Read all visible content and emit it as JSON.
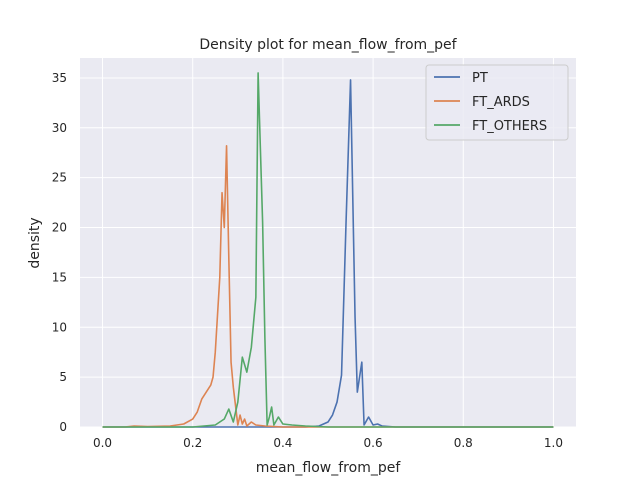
{
  "chart_data": {
    "type": "line",
    "title": "Density plot for mean_flow_from_pef",
    "xlabel": "mean_flow_from_pef",
    "ylabel": "density",
    "xlim": [
      -0.05,
      1.05
    ],
    "ylim": [
      0,
      37
    ],
    "xticks": [
      "0.0",
      "0.2",
      "0.4",
      "0.6",
      "0.8",
      "1.0"
    ],
    "yticks": [
      "0",
      "5",
      "10",
      "15",
      "20",
      "25",
      "30",
      "35"
    ],
    "grid": true,
    "legend_position": "top-right",
    "series": [
      {
        "name": "PT",
        "color": "#4c72b0",
        "x": [
          0.0,
          0.1,
          0.2,
          0.3,
          0.4,
          0.45,
          0.48,
          0.5,
          0.51,
          0.52,
          0.53,
          0.54,
          0.55,
          0.56,
          0.565,
          0.575,
          0.58,
          0.59,
          0.6,
          0.61,
          0.62,
          0.65,
          0.7,
          0.8,
          0.9,
          1.0
        ],
        "y": [
          0,
          0,
          0,
          0,
          0,
          0,
          0.1,
          0.5,
          1.2,
          2.5,
          5.2,
          20.5,
          34.8,
          11.0,
          3.5,
          6.5,
          0.2,
          1.0,
          0.2,
          0.3,
          0.1,
          0,
          0,
          0,
          0,
          0
        ]
      },
      {
        "name": "FT_ARDS",
        "color": "#dd8452",
        "x": [
          0.0,
          0.05,
          0.07,
          0.1,
          0.15,
          0.18,
          0.2,
          0.21,
          0.22,
          0.23,
          0.24,
          0.245,
          0.25,
          0.26,
          0.265,
          0.27,
          0.275,
          0.28,
          0.285,
          0.29,
          0.3,
          0.305,
          0.31,
          0.315,
          0.32,
          0.33,
          0.34,
          0.36,
          0.4,
          0.5,
          0.7,
          1.0
        ],
        "y": [
          0,
          0,
          0.1,
          0.05,
          0.1,
          0.3,
          0.8,
          1.5,
          2.8,
          3.5,
          4.2,
          5.0,
          7.5,
          15.0,
          23.5,
          20.0,
          28.2,
          17.0,
          6.5,
          4.0,
          0.2,
          1.2,
          0.3,
          0.8,
          0.1,
          0.5,
          0.2,
          0.1,
          0,
          0,
          0,
          0
        ]
      },
      {
        "name": "FT_OTHERS",
        "color": "#55a868",
        "x": [
          0.0,
          0.1,
          0.2,
          0.25,
          0.26,
          0.27,
          0.28,
          0.29,
          0.3,
          0.31,
          0.32,
          0.33,
          0.34,
          0.345,
          0.35,
          0.355,
          0.36,
          0.365,
          0.37,
          0.375,
          0.38,
          0.39,
          0.4,
          0.42,
          0.45,
          0.5,
          0.6,
          0.8,
          1.0
        ],
        "y": [
          0,
          0,
          0,
          0.2,
          0.5,
          0.8,
          1.8,
          0.5,
          2.5,
          7.0,
          5.5,
          8.0,
          13.0,
          35.5,
          28.0,
          20.5,
          9.0,
          0.2,
          1.0,
          2.0,
          0.2,
          1.0,
          0.3,
          0.2,
          0.1,
          0,
          0,
          0,
          0
        ]
      }
    ]
  }
}
